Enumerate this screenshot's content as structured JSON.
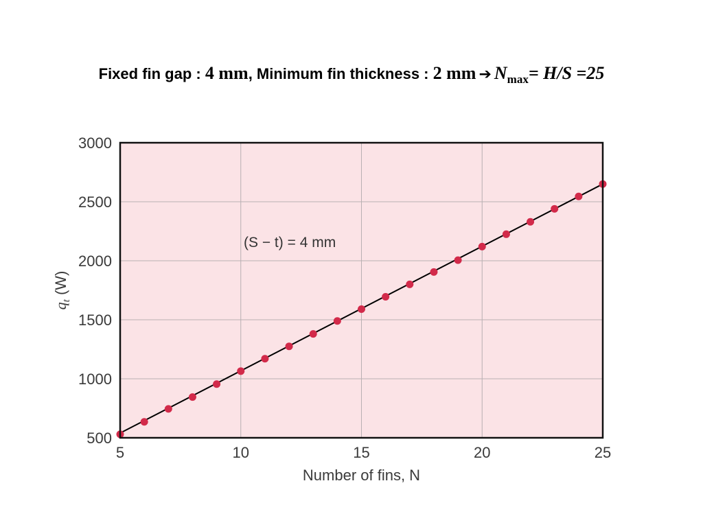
{
  "header": {
    "part1": "Fixed fin gap : ",
    "gap_value": "4 mm",
    "part2": ", Minimum fin thickness : ",
    "thickness_value": "2 mm",
    "n_symbol": "N",
    "n_sub": "max",
    "equation": "= H/S =25"
  },
  "chart_data": {
    "type": "scatter",
    "xlabel": "Number of fins, N",
    "ylabel": "q_t (W)",
    "xlim": [
      5,
      25
    ],
    "ylim": [
      500,
      3000
    ],
    "xticks": [
      5,
      10,
      15,
      20,
      25
    ],
    "yticks": [
      500,
      1000,
      1500,
      2000,
      2500,
      3000
    ],
    "grid": true,
    "annotation": "(S − t) = 4 mm",
    "series": [
      {
        "x": [
          5,
          6,
          7,
          8,
          9,
          10,
          11,
          12,
          13,
          14,
          15,
          16,
          17,
          18,
          19,
          20,
          21,
          22,
          23,
          24,
          25
        ],
        "y": [
          530,
          635,
          745,
          845,
          955,
          1065,
          1170,
          1275,
          1380,
          1490,
          1590,
          1695,
          1800,
          1905,
          2005,
          2120,
          2225,
          2330,
          2440,
          2545,
          2650
        ],
        "marker_color": "#d22a4a"
      }
    ],
    "fit_line": {
      "x": [
        5,
        25
      ],
      "y": [
        540,
        2650
      ]
    },
    "colors": {
      "plot_bg": "#fbe3e6",
      "grid": "#b8b0b2",
      "line": "#000000",
      "marker": "#d22a4a"
    }
  }
}
